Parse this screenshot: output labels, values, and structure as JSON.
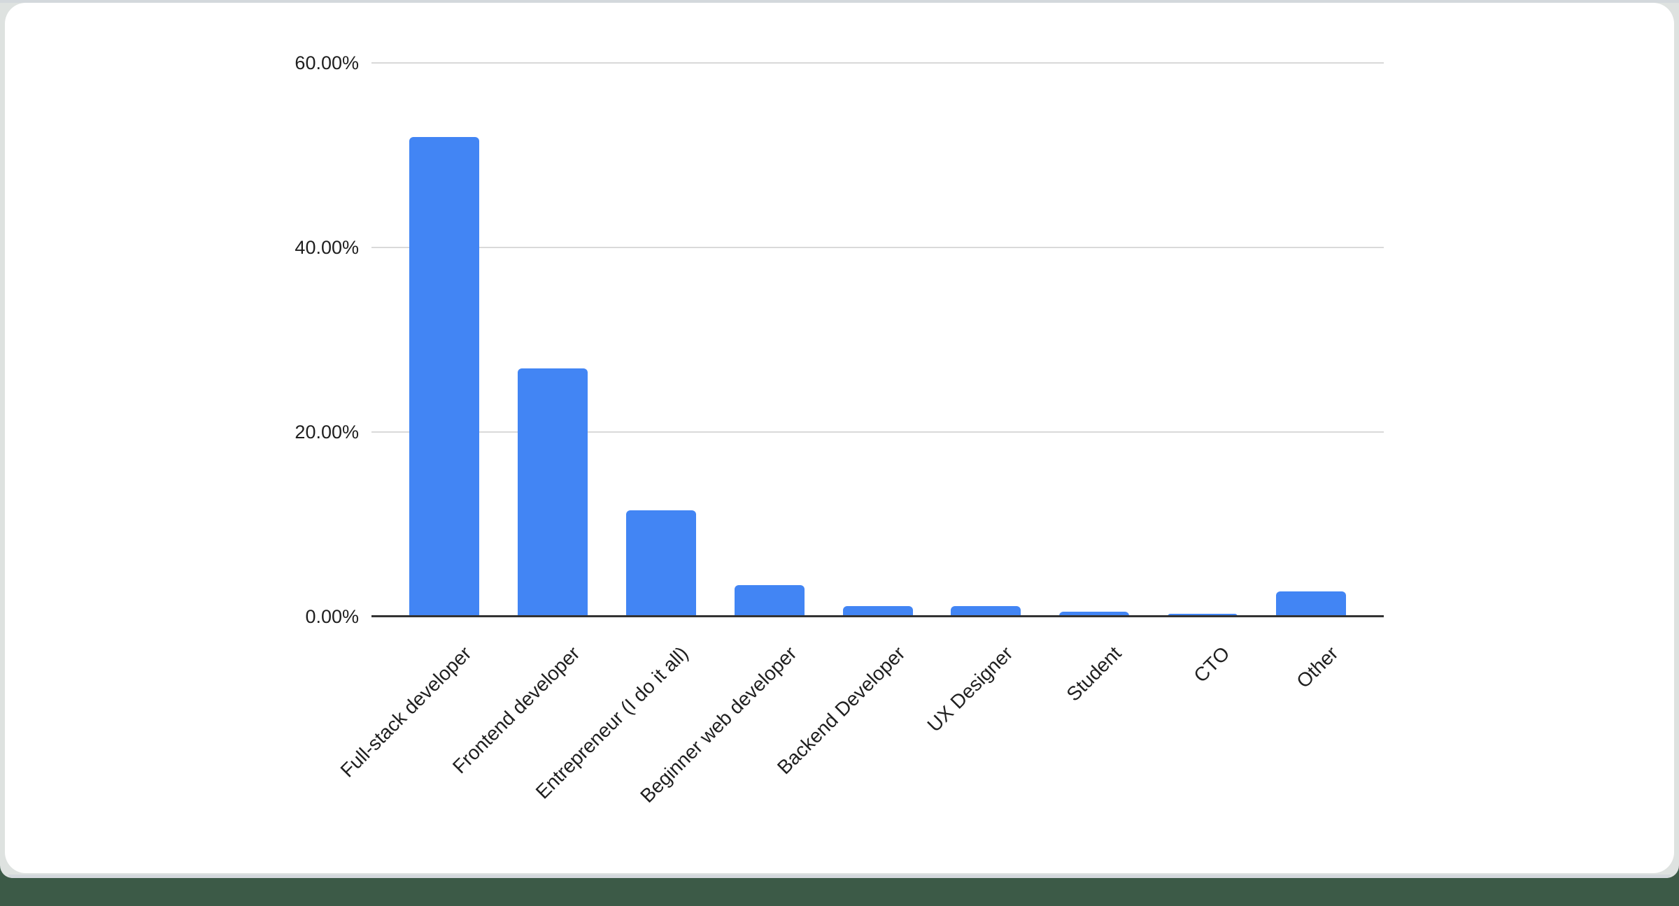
{
  "page": {
    "background_color": "#3c5a47",
    "frame_color": "#dee2e0",
    "edge_strip_color": "#d3d8dc",
    "card_color": "#ffffff"
  },
  "chart_data": {
    "type": "bar",
    "title": "",
    "categories": [
      "Full-stack developer",
      "Frontend developer",
      "Entrepreneur (I do it all)",
      "Beginner web developer",
      "Backend Developer",
      "UX Designer",
      "Student",
      "CTO",
      "Other"
    ],
    "values": [
      52.0,
      26.9,
      11.5,
      3.4,
      1.1,
      1.1,
      0.5,
      0.3,
      2.7
    ],
    "unit": "%",
    "y_ticks": [
      "60.00%",
      "40.00%",
      "20.00%",
      "0.00%"
    ],
    "y_tick_values": [
      60,
      40,
      20,
      0
    ],
    "ylim": [
      0,
      60
    ],
    "xlabel": "",
    "ylabel": "",
    "legend": "none",
    "grid": true,
    "x_label_rotation_deg": -45,
    "bar_color": "#4285f4",
    "gridline_color": "#d9d9d9",
    "axis_line_color": "#333333",
    "label_color": "#1f1f1f"
  }
}
